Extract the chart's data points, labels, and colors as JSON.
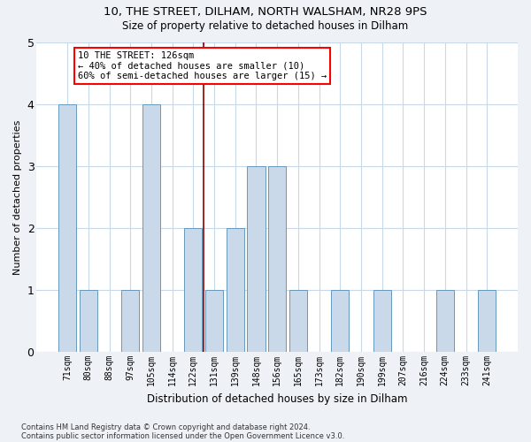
{
  "title1": "10, THE STREET, DILHAM, NORTH WALSHAM, NR28 9PS",
  "title2": "Size of property relative to detached houses in Dilham",
  "xlabel": "Distribution of detached houses by size in Dilham",
  "ylabel": "Number of detached properties",
  "categories": [
    "71sqm",
    "80sqm",
    "88sqm",
    "97sqm",
    "105sqm",
    "114sqm",
    "122sqm",
    "131sqm",
    "139sqm",
    "148sqm",
    "156sqm",
    "165sqm",
    "173sqm",
    "182sqm",
    "190sqm",
    "199sqm",
    "207sqm",
    "216sqm",
    "224sqm",
    "233sqm",
    "241sqm"
  ],
  "values": [
    4,
    1,
    0,
    1,
    4,
    0,
    2,
    1,
    2,
    3,
    3,
    1,
    0,
    1,
    0,
    1,
    0,
    0,
    1,
    0,
    1
  ],
  "bar_color": "#c9d9ea",
  "bar_edge_color": "#6699bb",
  "vline_x": 6.5,
  "annotation_text": "10 THE STREET: 126sqm\n← 40% of detached houses are smaller (10)\n60% of semi-detached houses are larger (15) →",
  "annotation_box_color": "white",
  "annotation_box_edge_color": "red",
  "vline_color": "#8b0000",
  "ylim": [
    0,
    5
  ],
  "yticks": [
    0,
    1,
    2,
    3,
    4,
    5
  ],
  "footer1": "Contains HM Land Registry data © Crown copyright and database right 2024.",
  "footer2": "Contains public sector information licensed under the Open Government Licence v3.0.",
  "background_color": "#eef2f7",
  "plot_background_color": "#ffffff",
  "grid_color": "#c8d8e8"
}
